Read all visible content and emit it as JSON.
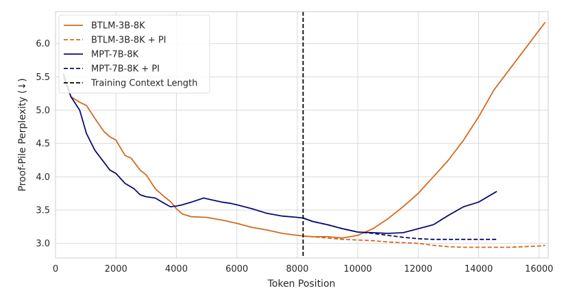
{
  "chart_data": {
    "type": "line",
    "xlabel": "Token Position",
    "ylabel": "Proof-Pile Perplexity (↓)",
    "xlim": [
      0,
      16300
    ],
    "ylim": [
      2.78,
      6.48
    ],
    "xticks": [
      0,
      2000,
      4000,
      6000,
      8000,
      10000,
      12000,
      14000,
      16000
    ],
    "yticks": [
      3.0,
      3.5,
      4.0,
      4.5,
      5.0,
      5.5,
      6.0
    ],
    "xtick_labels": [
      "0",
      "2000",
      "4000",
      "6000",
      "8000",
      "10000",
      "12000",
      "14000",
      "16000"
    ],
    "ytick_labels": [
      "3.0",
      "3.5",
      "4.0",
      "4.5",
      "5.0",
      "5.5",
      "6.0"
    ],
    "grid": true,
    "legend_position": "top-left",
    "reference_line": {
      "name": "Training Context Length",
      "x": 8192,
      "color": "#000000",
      "style": "dashed"
    },
    "series": [
      {
        "name": "BTLM-3B-8K",
        "color": "#d2691e",
        "style": "solid",
        "x": [
          256,
          512,
          800,
          1024,
          1300,
          1600,
          1800,
          2000,
          2300,
          2500,
          2800,
          3000,
          3300,
          3600,
          3800,
          4000,
          4200,
          4500,
          5000,
          5500,
          6000,
          6500,
          7000,
          7500,
          8000,
          8192,
          8500,
          9000,
          9500,
          10000,
          10500,
          11000,
          11500,
          12000,
          12500,
          13000,
          13500,
          14000,
          14500,
          15000,
          15500,
          16000,
          16200
        ],
        "values": [
          5.5,
          5.2,
          5.12,
          5.07,
          4.88,
          4.68,
          4.6,
          4.55,
          4.32,
          4.28,
          4.1,
          4.03,
          3.82,
          3.7,
          3.63,
          3.52,
          3.44,
          3.4,
          3.39,
          3.35,
          3.3,
          3.24,
          3.2,
          3.15,
          3.12,
          3.11,
          3.1,
          3.1,
          3.08,
          3.12,
          3.22,
          3.37,
          3.55,
          3.75,
          4.0,
          4.25,
          4.55,
          4.9,
          5.3,
          5.6,
          5.9,
          6.2,
          6.32
        ]
      },
      {
        "name": "BTLM-3B-8K + PI",
        "color": "#d2691e",
        "style": "dashed",
        "x": [
          8192,
          8500,
          9000,
          9500,
          10000,
          10500,
          11000,
          11500,
          12000,
          12500,
          13000,
          13500,
          14000,
          14500,
          15000,
          15500,
          16000,
          16200
        ],
        "values": [
          3.11,
          3.1,
          3.08,
          3.06,
          3.05,
          3.04,
          3.02,
          3.01,
          3.0,
          2.97,
          2.95,
          2.94,
          2.94,
          2.94,
          2.94,
          2.95,
          2.96,
          2.97
        ]
      },
      {
        "name": "MPT-7B-8K",
        "color": "#0a0a6e",
        "style": "solid",
        "x": [
          256,
          512,
          800,
          1024,
          1300,
          1600,
          1800,
          2000,
          2300,
          2600,
          2800,
          3000,
          3300,
          3600,
          3800,
          4000,
          4200,
          4500,
          4900,
          5200,
          5500,
          5800,
          6000,
          6500,
          7000,
          7500,
          8000,
          8192,
          8500,
          9000,
          9500,
          10000,
          10500,
          11000,
          11500,
          12000,
          12500,
          13000,
          13500,
          14000,
          14600
        ],
        "values": [
          5.55,
          5.2,
          5.0,
          4.65,
          4.4,
          4.22,
          4.1,
          4.05,
          3.9,
          3.82,
          3.73,
          3.7,
          3.68,
          3.6,
          3.55,
          3.56,
          3.58,
          3.62,
          3.68,
          3.65,
          3.62,
          3.6,
          3.58,
          3.52,
          3.45,
          3.41,
          3.39,
          3.38,
          3.33,
          3.28,
          3.22,
          3.17,
          3.16,
          3.15,
          3.16,
          3.22,
          3.28,
          3.42,
          3.55,
          3.62,
          3.78
        ]
      },
      {
        "name": "MPT-7B-8K + PI",
        "color": "#0a0a6e",
        "style": "dashed",
        "x": [
          8192,
          8500,
          9000,
          9500,
          10000,
          10500,
          11000,
          11500,
          12000,
          12500,
          13000,
          13500,
          14000,
          14600
        ],
        "values": [
          3.38,
          3.33,
          3.28,
          3.22,
          3.17,
          3.15,
          3.12,
          3.09,
          3.07,
          3.06,
          3.06,
          3.06,
          3.06,
          3.06
        ]
      }
    ]
  }
}
